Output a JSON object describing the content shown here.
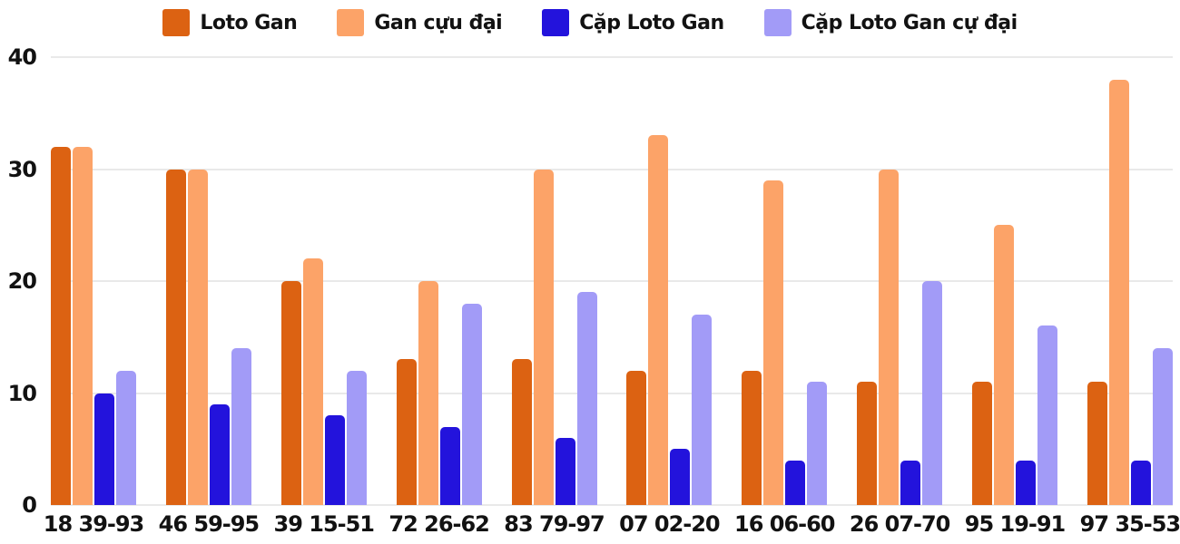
{
  "chart_data": {
    "type": "bar",
    "title": "",
    "xlabel": "",
    "ylabel": "",
    "ylim": [
      0,
      40
    ],
    "yticks": [
      0,
      10,
      20,
      30,
      40
    ],
    "grid": true,
    "legend_position": "top",
    "categories": [
      "18 39-93",
      "46 59-95",
      "39 15-51",
      "72 26-62",
      "83 79-97",
      "07 02-20",
      "16 06-60",
      "26 07-70",
      "95 19-91",
      "97 35-53"
    ],
    "series": [
      {
        "name": "Loto Gan",
        "color": "#DC6212",
        "values": [
          32,
          30,
          20,
          13,
          13,
          12,
          12,
          11,
          11,
          11
        ]
      },
      {
        "name": "Gan cựu đại",
        "color": "#FCA368",
        "values": [
          32,
          30,
          22,
          20,
          30,
          33,
          29,
          30,
          25,
          38
        ]
      },
      {
        "name": "Cặp Loto Gan",
        "color": "#2313DC",
        "values": [
          10,
          9,
          8,
          7,
          6,
          5,
          4,
          4,
          4,
          4
        ]
      },
      {
        "name": "Cặp Loto Gan cự đại",
        "color": "#A29BF7",
        "values": [
          12,
          14,
          12,
          18,
          19,
          17,
          11,
          20,
          16,
          14
        ]
      }
    ],
    "colors": {
      "text": "#121212",
      "gridline": "#e9e9e9",
      "background": "#ffffff"
    }
  }
}
